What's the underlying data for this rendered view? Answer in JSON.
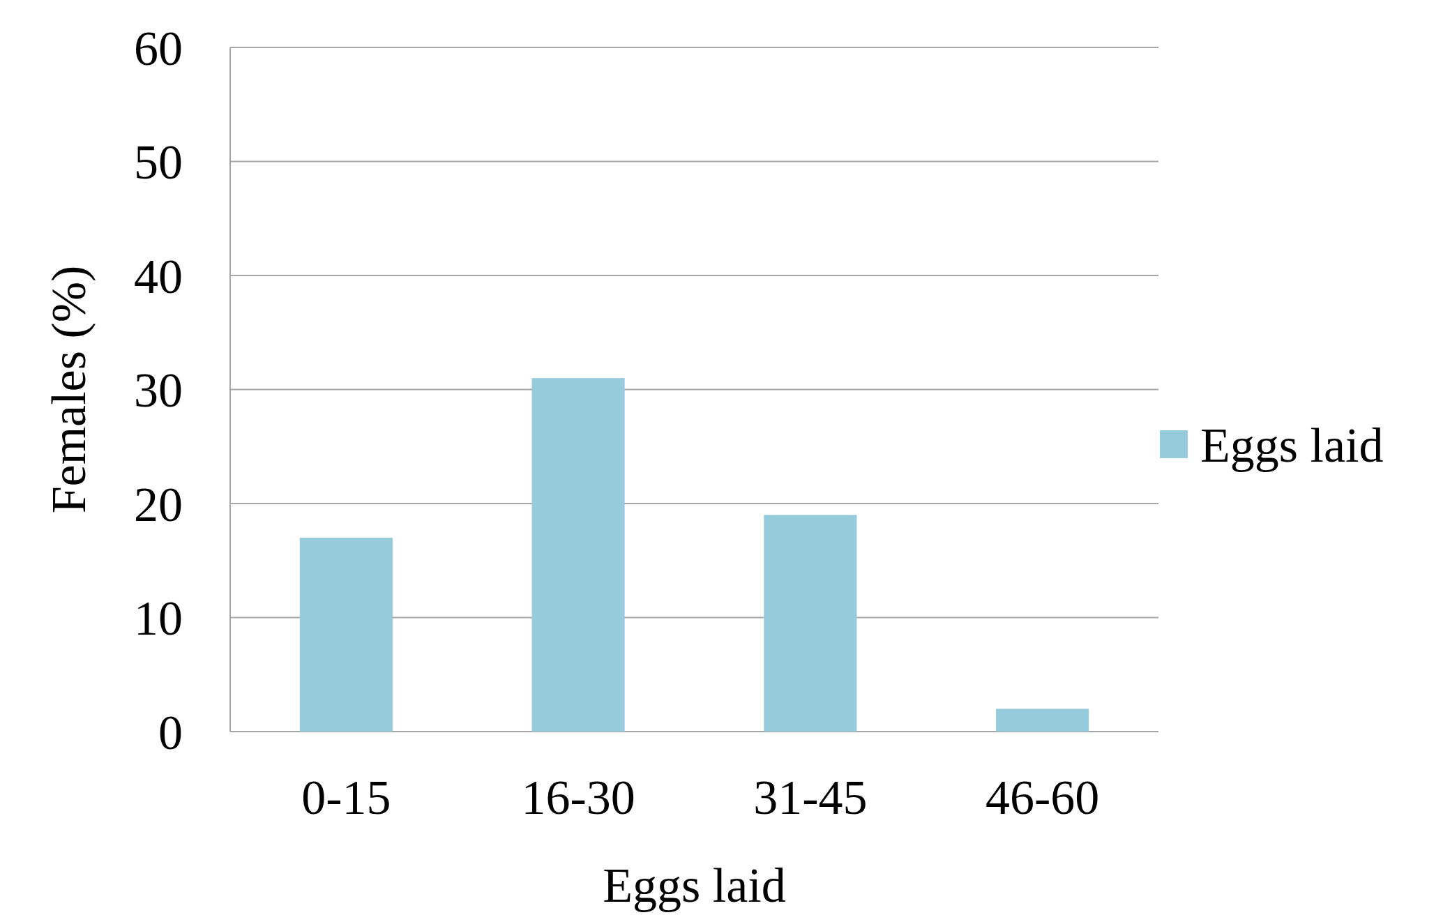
{
  "chart_data": {
    "type": "bar",
    "xlabel": "Eggs laid",
    "ylabel": "Females (%)",
    "categories": [
      "0-15",
      "16-30",
      "31-45",
      "46-60"
    ],
    "series": [
      {
        "name": "Eggs laid",
        "color": "#96cbdb",
        "values": [
          17,
          31,
          19,
          2
        ]
      }
    ],
    "ylim": [
      0,
      60
    ],
    "yticks": [
      0,
      10,
      20,
      30,
      40,
      50,
      60
    ],
    "grid": "y",
    "legend": "right"
  }
}
